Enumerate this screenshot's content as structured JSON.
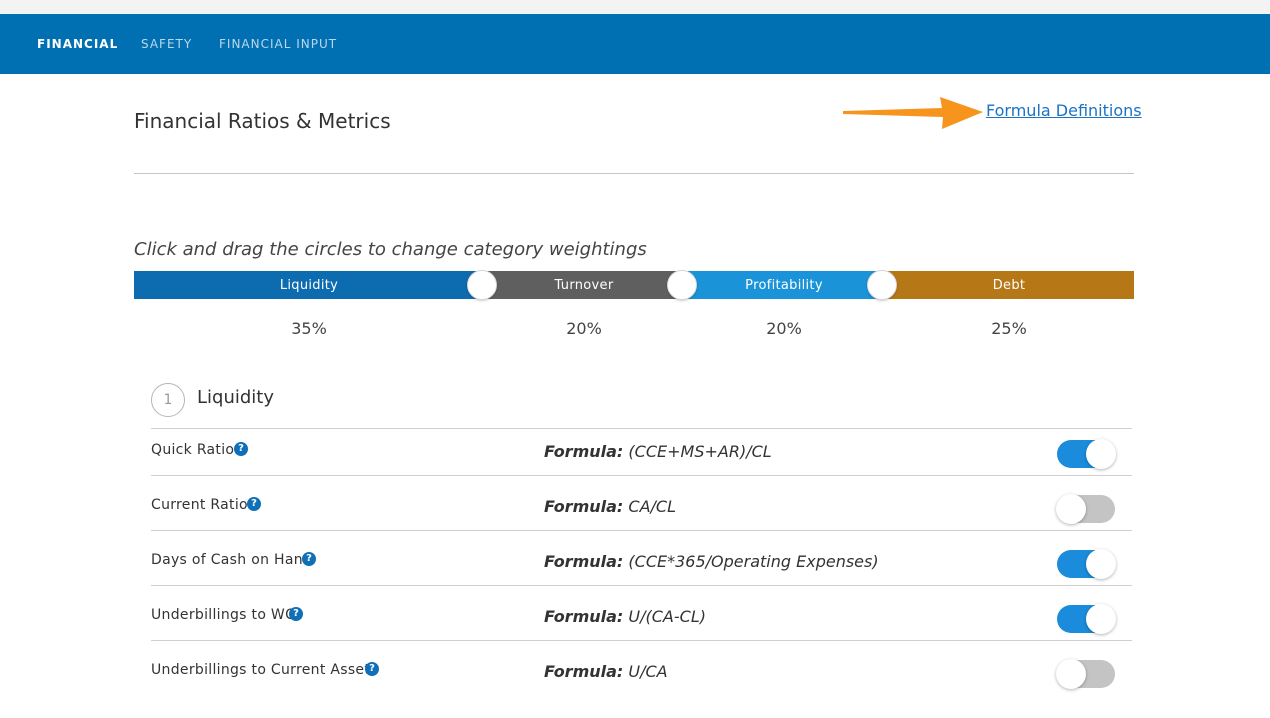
{
  "nav": {
    "tabs": [
      {
        "label": "FINANCIAL",
        "active": true
      },
      {
        "label": "SAFETY",
        "active": false
      },
      {
        "label": "FINANCIAL INPUT",
        "active": false
      }
    ]
  },
  "header": {
    "title": "Financial Ratios & Metrics",
    "formula_link": "Formula Definitions"
  },
  "weights": {
    "instruction": "Click and drag the circles to change category weightings",
    "categories": [
      {
        "label": "Liquidity",
        "percent": "35%",
        "color": "#0d6bb0"
      },
      {
        "label": "Turnover",
        "percent": "20%",
        "color": "#5f5f5f"
      },
      {
        "label": "Profitability",
        "percent": "20%",
        "color": "#1a93d8"
      },
      {
        "label": "Debt",
        "percent": "25%",
        "color": "#b67717"
      }
    ]
  },
  "section": {
    "number": "1",
    "title": "Liquidity",
    "formula_prefix": "Formula:",
    "rows": [
      {
        "label": "Quick Ratio",
        "formula": "(CCE+MS+AR)/CL",
        "enabled": true
      },
      {
        "label": "Current Ratio",
        "formula": "CA/CL",
        "enabled": false
      },
      {
        "label": "Days of Cash on Hand",
        "formula": "(CCE*365/Operating Expenses)",
        "enabled": true
      },
      {
        "label": "Underbillings to WC",
        "formula": "U/(CA-CL)",
        "enabled": true
      },
      {
        "label": "Underbillings to Current Assets",
        "formula": "U/CA",
        "enabled": false
      }
    ]
  },
  "colors": {
    "nav_bg": "#0070b3",
    "toggle_on": "#1a8cdb",
    "toggle_off": "#c4c4c4",
    "link": "#1a73c4",
    "annotation_arrow": "#f7941d"
  },
  "icons": {
    "help": "question-circle-icon",
    "annotation": "orange-arrow-icon"
  }
}
